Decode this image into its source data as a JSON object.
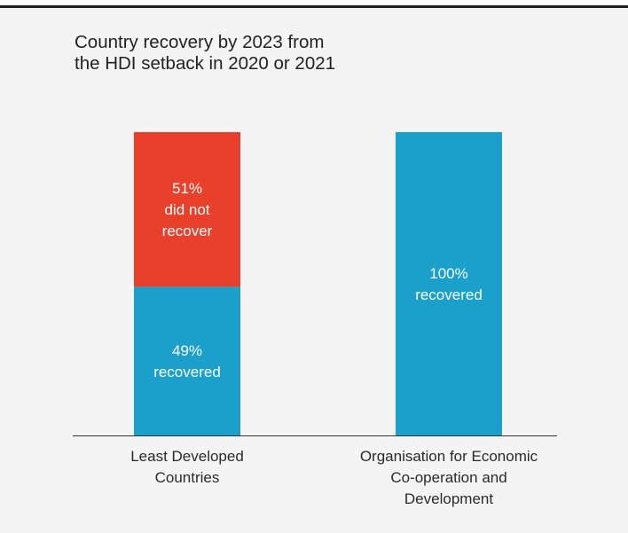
{
  "title": "Country recovery by 2023 from\nthe HDI setback in 2020 or 2021",
  "colors": {
    "recovered": "#1aa0cb",
    "did_not_recover": "#e9402c",
    "background": "#f4f4f4",
    "axis": "#333333"
  },
  "chart_data": {
    "type": "bar",
    "stacked": true,
    "ylim": [
      0,
      100
    ],
    "categories": [
      "Least Developed\nCountries",
      "Organisation for Economic\nCo-operation and\nDevelopment"
    ],
    "series": [
      {
        "key": "recovered",
        "values": [
          49,
          100
        ],
        "labels": [
          "49%\nrecovered",
          "100%\nrecovered"
        ]
      },
      {
        "key": "did_not_recover",
        "values": [
          51,
          0
        ],
        "labels": [
          "51%\ndid not\nrecover",
          ""
        ]
      }
    ]
  }
}
